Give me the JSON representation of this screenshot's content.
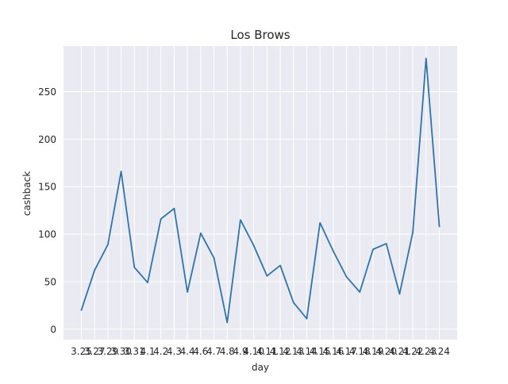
{
  "chart_data": {
    "type": "line",
    "title": "Los Brows",
    "xlabel": "day",
    "ylabel": "cashback",
    "x": [
      "3.25",
      "3.27",
      "3.29",
      "3.30",
      "3.31",
      "4.1",
      "4.2",
      "4.3",
      "4.4",
      "4.6",
      "4.7",
      "4.8",
      "4.9",
      "4.10",
      "4.11",
      "4.12",
      "4.13",
      "4.14",
      "4.15",
      "4.16",
      "4.17",
      "4.18",
      "4.19",
      "4.20",
      "4.21",
      "4.22",
      "4.23",
      "4.24"
    ],
    "values": [
      20,
      62,
      89,
      166,
      65,
      49,
      116,
      127,
      39,
      101,
      75,
      7,
      115,
      88,
      56,
      67,
      28,
      11,
      112,
      82,
      55,
      39,
      84,
      90,
      37,
      102,
      285,
      108
    ],
    "yticks": [
      0,
      50,
      100,
      150,
      200,
      250
    ],
    "ylim": [
      -11,
      298
    ],
    "grid": true,
    "colors": {
      "line": "#2f74ac",
      "background": "#eaeaf2",
      "grid": "#ffffff",
      "text": "#262626"
    }
  }
}
